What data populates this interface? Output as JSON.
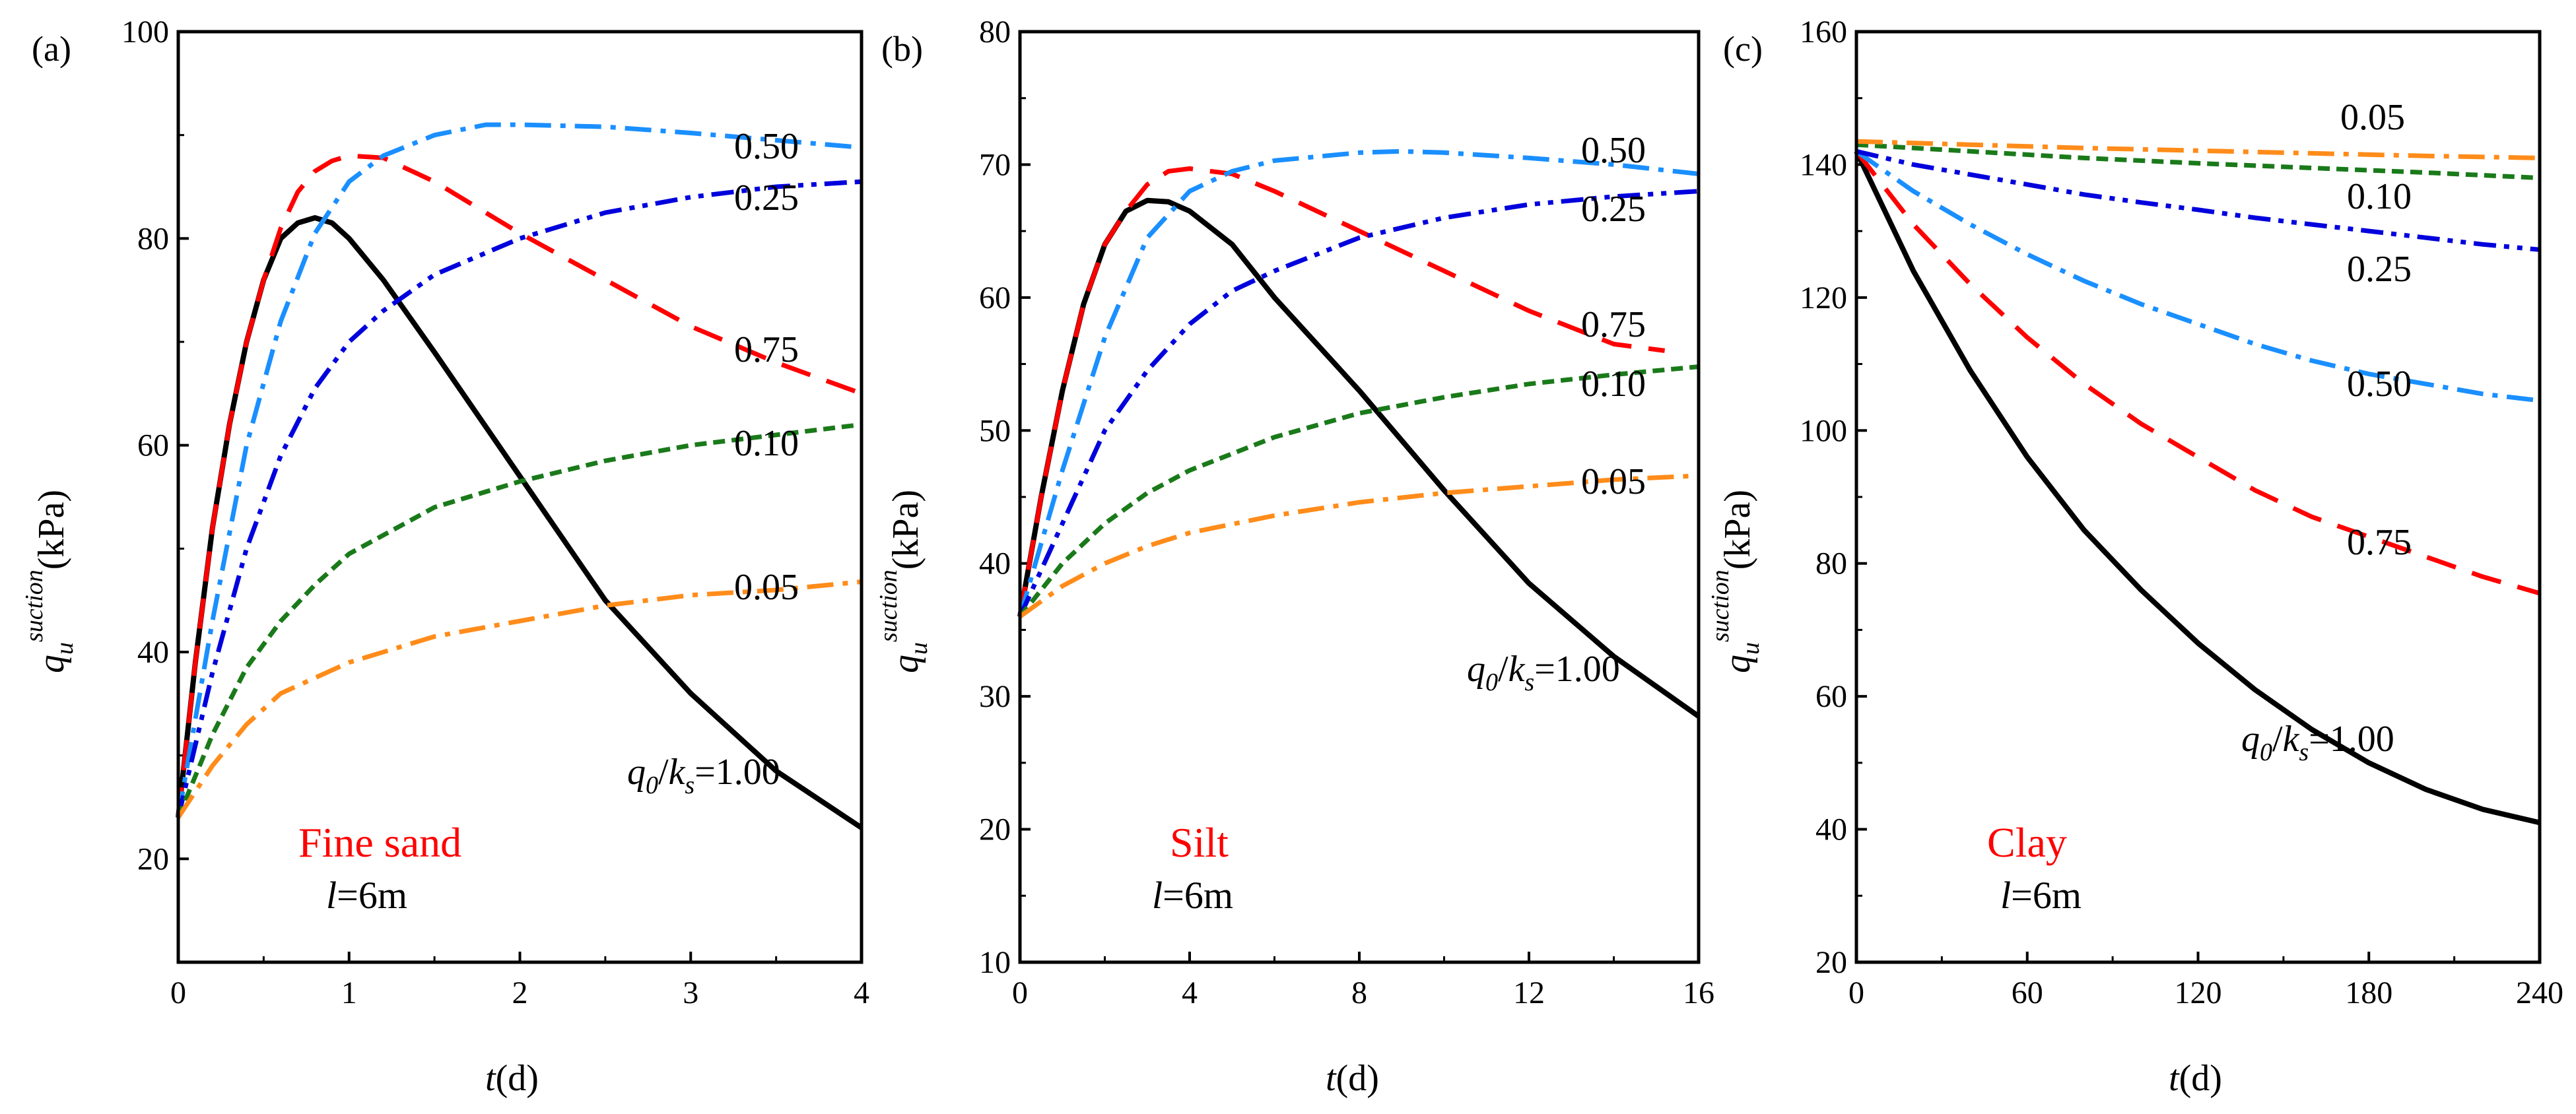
{
  "figure": {
    "y_axis_label": {
      "symbol": "q",
      "sub": "u",
      "sup": "suction",
      "unit": "(kPa)"
    },
    "x_axis_label": {
      "symbol": "t",
      "unit": "(d)"
    },
    "colors": {
      "1.00": "#000000",
      "0.75": "#ff0000",
      "0.50": "#1a8fff",
      "0.25": "#0000dd",
      "0.10": "#1a7a1a",
      "0.05": "#ff8c1a",
      "soil_label": "#ff0000"
    }
  },
  "chart_data": [
    {
      "type": "line",
      "panel": "(a)",
      "soil": "Fine sand",
      "length_label": {
        "var": "l",
        "text": "=6m"
      },
      "xlim": [
        0,
        4
      ],
      "ylim": [
        10,
        100
      ],
      "xticks": [
        0,
        1,
        2,
        3,
        4
      ],
      "yticks": [
        20,
        40,
        60,
        80,
        100
      ],
      "series": [
        {
          "name": "1.00",
          "label": "q0/ks=1.00",
          "style": "solid",
          "x": [
            0,
            0.1,
            0.2,
            0.3,
            0.4,
            0.5,
            0.6,
            0.7,
            0.8,
            0.9,
            1.0,
            1.2,
            1.5,
            2.0,
            2.5,
            3.0,
            3.5,
            4.0
          ],
          "y": [
            24,
            39,
            52,
            62,
            70,
            76,
            80,
            81.5,
            82,
            81.5,
            80,
            76,
            69,
            57,
            45,
            36,
            28.5,
            23
          ]
        },
        {
          "name": "0.75",
          "label": "0.75",
          "style": "dash",
          "x": [
            0,
            0.1,
            0.2,
            0.3,
            0.4,
            0.5,
            0.6,
            0.7,
            0.8,
            0.9,
            1.0,
            1.2,
            1.5,
            2.0,
            2.5,
            3.0,
            3.5,
            4.0
          ],
          "y": [
            24,
            39,
            52,
            62,
            70,
            76,
            81,
            84.5,
            86.5,
            87.5,
            88,
            87.8,
            85.5,
            80.5,
            76,
            71.5,
            68,
            65
          ]
        },
        {
          "name": "0.50",
          "label": "0.50",
          "style": "dashdot",
          "x": [
            0,
            0.2,
            0.4,
            0.6,
            0.8,
            1.0,
            1.2,
            1.5,
            1.8,
            2.0,
            2.5,
            3.0,
            3.5,
            4.0
          ],
          "y": [
            24,
            43,
            60,
            72,
            80.5,
            85.5,
            88,
            90,
            91,
            91,
            90.8,
            90.2,
            89.5,
            88.8
          ]
        },
        {
          "name": "0.25",
          "label": "0.25",
          "style": "dashdotdot",
          "x": [
            0,
            0.2,
            0.4,
            0.6,
            0.8,
            1.0,
            1.2,
            1.5,
            2.0,
            2.5,
            3.0,
            3.5,
            4.0
          ],
          "y": [
            24,
            38,
            50,
            59,
            65.5,
            70,
            73,
            76.5,
            80,
            82.5,
            84,
            85,
            85.5
          ]
        },
        {
          "name": "0.10",
          "label": "0.10",
          "style": "shortdash",
          "x": [
            0,
            0.2,
            0.4,
            0.6,
            0.8,
            1.0,
            1.5,
            2.0,
            2.5,
            3.0,
            3.5,
            4.0
          ],
          "y": [
            24,
            32,
            38.5,
            43,
            46.5,
            49.5,
            54,
            56.5,
            58.5,
            60,
            61,
            62
          ]
        },
        {
          "name": "0.05",
          "label": "0.05",
          "style": "dashdot",
          "x": [
            0,
            0.2,
            0.4,
            0.6,
            0.8,
            1.0,
            1.5,
            2.0,
            2.5,
            3.0,
            3.5,
            4.0
          ],
          "y": [
            24,
            29,
            33,
            36,
            37.5,
            39,
            41.5,
            43,
            44.5,
            45.5,
            46,
            46.8
          ]
        }
      ],
      "annotations": [
        "0.50",
        "0.25",
        "0.75",
        "0.10",
        "0.05",
        "q0/ks=1.00"
      ]
    },
    {
      "type": "line",
      "panel": "(b)",
      "soil": "Silt",
      "length_label": {
        "var": "l",
        "text": "=6m"
      },
      "xlim": [
        0,
        16
      ],
      "ylim": [
        10,
        80
      ],
      "xticks": [
        0,
        4,
        8,
        12,
        16
      ],
      "yticks": [
        10,
        20,
        30,
        40,
        50,
        60,
        70,
        80
      ],
      "series": [
        {
          "name": "1.00",
          "label": "q0/ks=1.00",
          "style": "solid",
          "x": [
            0,
            0.5,
            1,
            1.5,
            2,
            2.5,
            3,
            3.5,
            4,
            5,
            6,
            8,
            10,
            12,
            14,
            16
          ],
          "y": [
            36,
            45,
            53,
            59.5,
            64,
            66.5,
            67.3,
            67.2,
            66.5,
            64,
            60,
            53,
            45.5,
            38.5,
            33,
            28.5
          ]
        },
        {
          "name": "0.75",
          "label": "0.75",
          "style": "dash",
          "x": [
            0,
            0.5,
            1,
            1.5,
            2,
            2.5,
            3,
            3.5,
            4,
            5,
            6,
            8,
            10,
            12,
            14,
            15.2
          ],
          "y": [
            36,
            45,
            53,
            59.5,
            64,
            66.5,
            68.5,
            69.5,
            69.7,
            69.3,
            68,
            65,
            62,
            59,
            56.5,
            56
          ]
        },
        {
          "name": "0.50",
          "label": "0.50",
          "style": "dashdot",
          "x": [
            0,
            1,
            2,
            3,
            4,
            5,
            6,
            8,
            9,
            10,
            12,
            14,
            16
          ],
          "y": [
            36,
            47,
            57,
            64.5,
            68,
            69.5,
            70.3,
            70.9,
            71,
            70.9,
            70.5,
            70,
            69.3
          ]
        },
        {
          "name": "0.25",
          "label": "0.25",
          "style": "dashdotdot",
          "x": [
            0,
            1,
            2,
            3,
            4,
            5,
            6,
            8,
            10,
            12,
            14,
            16
          ],
          "y": [
            36,
            43,
            50,
            54.5,
            58,
            60.5,
            62,
            64.5,
            66,
            67,
            67.6,
            68
          ]
        },
        {
          "name": "0.10",
          "label": "0.10",
          "style": "shortdash",
          "x": [
            0,
            1,
            2,
            3,
            4,
            6,
            8,
            10,
            12,
            14,
            16
          ],
          "y": [
            36,
            40,
            43,
            45.3,
            47,
            49.5,
            51.3,
            52.5,
            53.5,
            54.2,
            54.8
          ]
        },
        {
          "name": "0.05",
          "label": "0.05",
          "style": "dashdot",
          "x": [
            0,
            1,
            2,
            3,
            4,
            6,
            8,
            10,
            12,
            14,
            16
          ],
          "y": [
            36,
            38.3,
            40,
            41.3,
            42.3,
            43.6,
            44.6,
            45.3,
            45.8,
            46.3,
            46.6
          ]
        }
      ],
      "annotations": [
        "0.50",
        "0.25",
        "0.75",
        "0.10",
        "0.05",
        "q0/ks=1.00"
      ]
    },
    {
      "type": "line",
      "panel": "(c)",
      "soil": "Clay",
      "length_label": {
        "var": "l",
        "text": "=6m"
      },
      "xlim": [
        0,
        240
      ],
      "ylim": [
        20,
        160
      ],
      "xticks": [
        0,
        60,
        120,
        180,
        240
      ],
      "yticks": [
        20,
        40,
        60,
        80,
        100,
        120,
        140,
        160
      ],
      "series": [
        {
          "name": "1.00",
          "label": "q0/ks=1.00",
          "style": "solid",
          "x": [
            0,
            20,
            40,
            60,
            80,
            100,
            120,
            140,
            160,
            180,
            200,
            220,
            240
          ],
          "y": [
            142,
            124,
            109,
            96,
            85,
            76,
            68,
            61,
            55,
            50,
            46,
            43,
            41
          ]
        },
        {
          "name": "0.75",
          "label": "0.75",
          "style": "dash",
          "x": [
            0,
            20,
            40,
            60,
            80,
            100,
            120,
            140,
            160,
            180,
            200,
            220,
            240
          ],
          "y": [
            142,
            131,
            122,
            114,
            107,
            101,
            96,
            91,
            87,
            84,
            81,
            78,
            75.5
          ]
        },
        {
          "name": "0.50",
          "label": "0.50",
          "style": "dashdot",
          "x": [
            0,
            20,
            40,
            60,
            80,
            100,
            120,
            140,
            160,
            180,
            200,
            220,
            240
          ],
          "y": [
            142,
            136,
            131,
            126.5,
            122.5,
            119,
            116,
            113,
            110.5,
            108.5,
            107,
            105.5,
            104.5
          ]
        },
        {
          "name": "0.25",
          "label": "0.25",
          "style": "dashdotdot",
          "x": [
            0,
            20,
            40,
            60,
            80,
            100,
            120,
            140,
            160,
            180,
            200,
            220,
            240
          ],
          "y": [
            142,
            140,
            138.5,
            137,
            135.5,
            134.3,
            133.2,
            132,
            131,
            130,
            129,
            128,
            127.2
          ]
        },
        {
          "name": "0.10",
          "label": "0.10",
          "style": "shortdash",
          "x": [
            0,
            40,
            80,
            120,
            160,
            200,
            240
          ],
          "y": [
            143,
            142,
            141,
            140.2,
            139.5,
            138.8,
            138
          ]
        },
        {
          "name": "0.05",
          "label": "0.05",
          "style": "dashdot",
          "x": [
            0,
            40,
            80,
            120,
            160,
            200,
            240
          ],
          "y": [
            143.5,
            143,
            142.5,
            142.1,
            141.7,
            141.3,
            141
          ]
        }
      ],
      "annotations": [
        "0.05",
        "0.10",
        "0.25",
        "0.50",
        "0.75",
        "q0/ks=1.00"
      ]
    }
  ]
}
